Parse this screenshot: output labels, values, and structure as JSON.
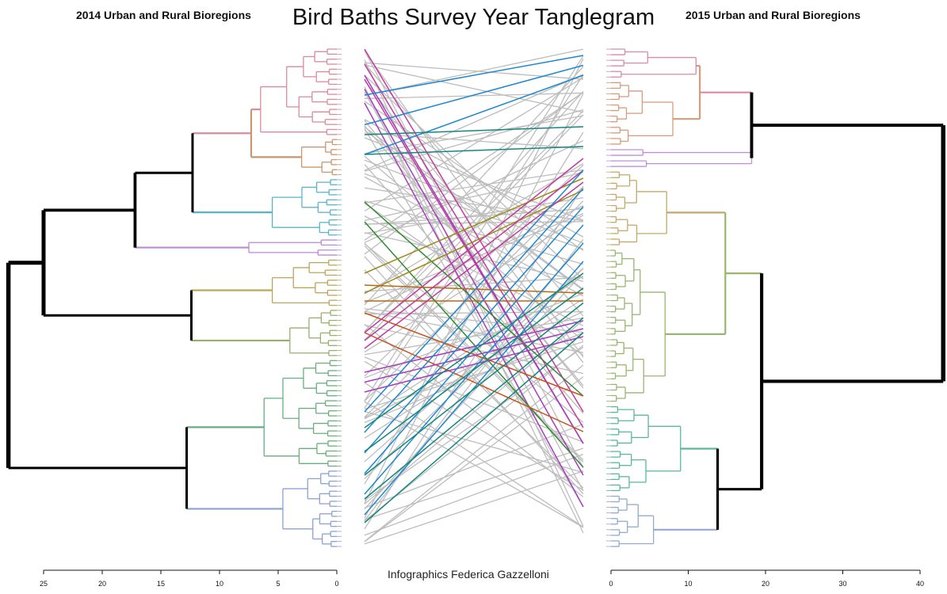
{
  "title": "Bird Baths Survey Year Tanglegram",
  "credit": "Infographics Federica Gazzelloni",
  "chart_data": {
    "type": "tanglegram",
    "left": {
      "title": "2014 Urban and Rural Bioregions",
      "axis_ticks": [
        25,
        20,
        15,
        10,
        5,
        0
      ],
      "axis_range": [
        0,
        25
      ],
      "axis_direction": "reversed",
      "clusters": [
        {
          "color": "#d98a9e",
          "leaves": 18,
          "merge_height": 6.5
        },
        {
          "color": "#c9966e",
          "leaves": 8,
          "merge_height": 3.0
        },
        {
          "color": "#5ab4c8",
          "leaves": 12,
          "merge_height": 5.5
        },
        {
          "color": "#b98ad0",
          "leaves": 4,
          "merge_height": 7.5
        },
        {
          "color": "#bba75a",
          "leaves": 10,
          "merge_height": 5.5
        },
        {
          "color": "#98b06a",
          "leaves": 10,
          "merge_height": 4.0
        },
        {
          "color": "#6aae7e",
          "leaves": 22,
          "merge_height": 6.2
        },
        {
          "color": "#8aa2d0",
          "leaves": 16,
          "merge_height": 4.6
        }
      ],
      "top_merges": [
        12.3,
        17.2,
        12.4,
        25.0,
        12.8,
        28.0
      ]
    },
    "right": {
      "title": "2015 Urban and Rural Bioregions",
      "axis_ticks": [
        0,
        10,
        20,
        30,
        40
      ],
      "axis_range": [
        0,
        40
      ],
      "clusters": [
        {
          "color": "#d98aa8",
          "leaves": 6,
          "merge_height": 11.0
        },
        {
          "color": "#d89a7c",
          "leaves": 12,
          "merge_height": 8.0
        },
        {
          "color": "#c08ed8",
          "leaves": 4,
          "merge_height": 18.2
        },
        {
          "color": "#c5a868",
          "leaves": 14,
          "merge_height": 7.2
        },
        {
          "color": "#98b670",
          "leaves": 28,
          "merge_height": 7.0
        },
        {
          "color": "#5ab89a",
          "leaves": 16,
          "merge_height": 9.0
        },
        {
          "color": "#92aad2",
          "leaves": 10,
          "merge_height": 5.5
        }
      ],
      "top_merges": [
        18.2,
        43.0,
        14.8,
        13.8,
        19.5
      ]
    },
    "colored_connector_colors": [
      "#c23aa0",
      "#a63dbc",
      "#1e88d0",
      "#15877e",
      "#2e8b2e",
      "#9a8a1a",
      "#b86a10",
      "#c8531a"
    ],
    "connector_color": "#bdbdbd"
  }
}
